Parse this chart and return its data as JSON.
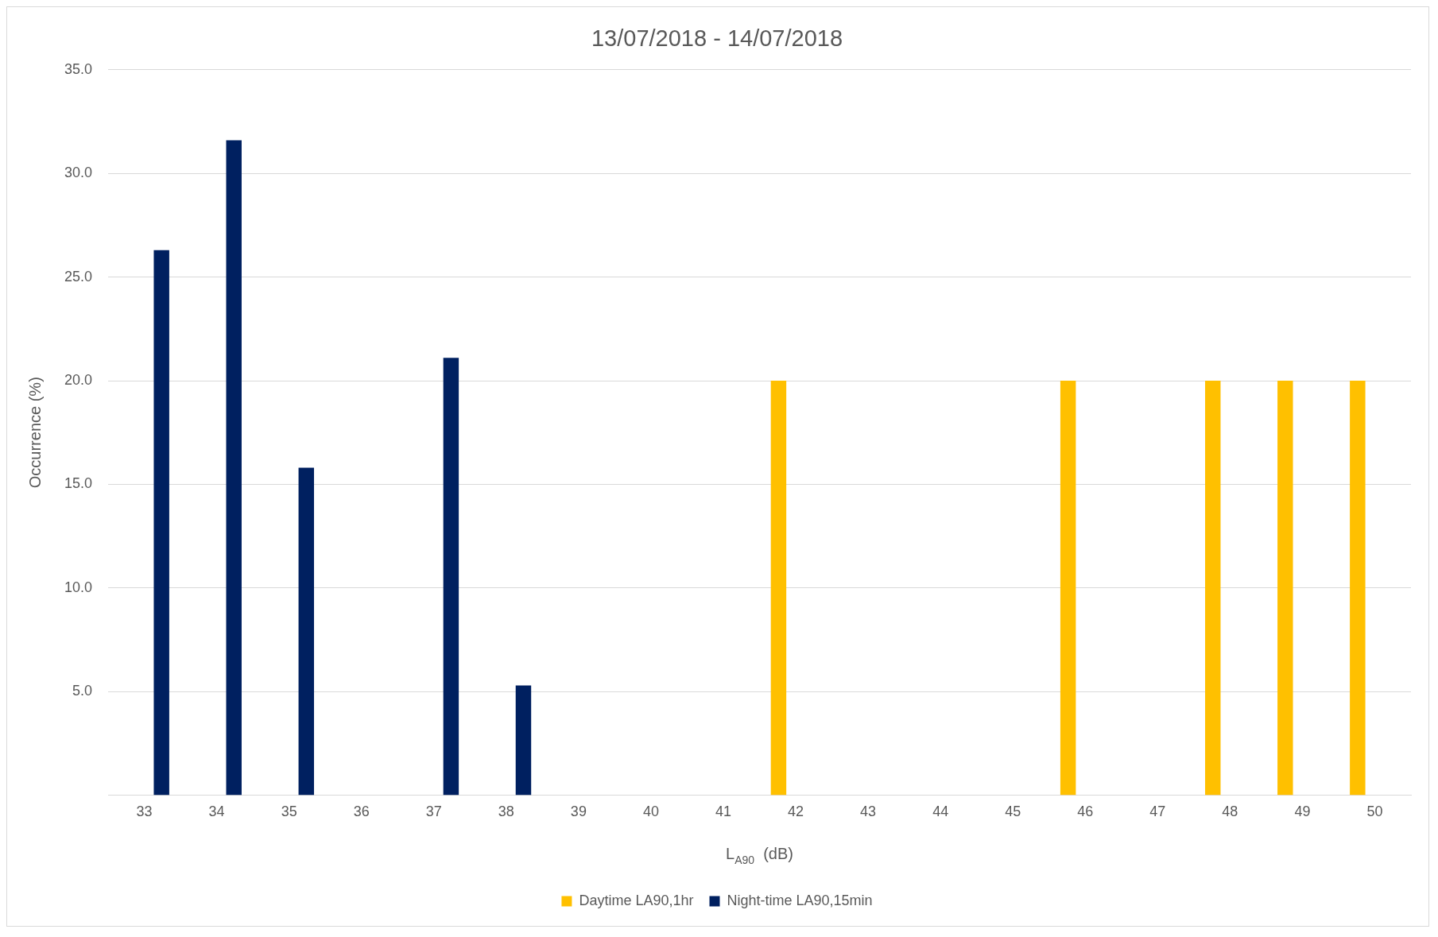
{
  "chart_data": {
    "type": "bar",
    "title": "13/07/2018 - 14/07/2018",
    "xlabel": "L$_{A90}$  (dB)",
    "ylabel": "Occurrence (%)",
    "categories": [
      "33",
      "34",
      "35",
      "36",
      "37",
      "38",
      "39",
      "40",
      "41",
      "42",
      "43",
      "44",
      "45",
      "46",
      "47",
      "48",
      "49",
      "50"
    ],
    "series": [
      {
        "name": "Daytime LA90,1hr",
        "color": "#ffc000",
        "values": [
          null,
          null,
          null,
          null,
          null,
          null,
          null,
          null,
          null,
          20.0,
          null,
          null,
          null,
          20.0,
          null,
          20.0,
          20.0,
          20.0
        ]
      },
      {
        "name": "Night-time LA90,15min",
        "color": "#002060",
        "values": [
          26.3,
          31.6,
          15.8,
          null,
          21.1,
          5.3,
          null,
          null,
          null,
          null,
          null,
          null,
          null,
          null,
          null,
          null,
          null,
          null
        ]
      }
    ],
    "ylim": [
      0,
      35
    ],
    "yticks": [
      {
        "value": 5,
        "label": "5.0"
      },
      {
        "value": 10,
        "label": "10.0"
      },
      {
        "value": 15,
        "label": "15.0"
      },
      {
        "value": 20,
        "label": "20.0"
      },
      {
        "value": 25,
        "label": "25.0"
      },
      {
        "value": 30,
        "label": "30.0"
      },
      {
        "value": 35,
        "label": "35.0"
      }
    ],
    "grid": "y",
    "legend": "bottom"
  }
}
